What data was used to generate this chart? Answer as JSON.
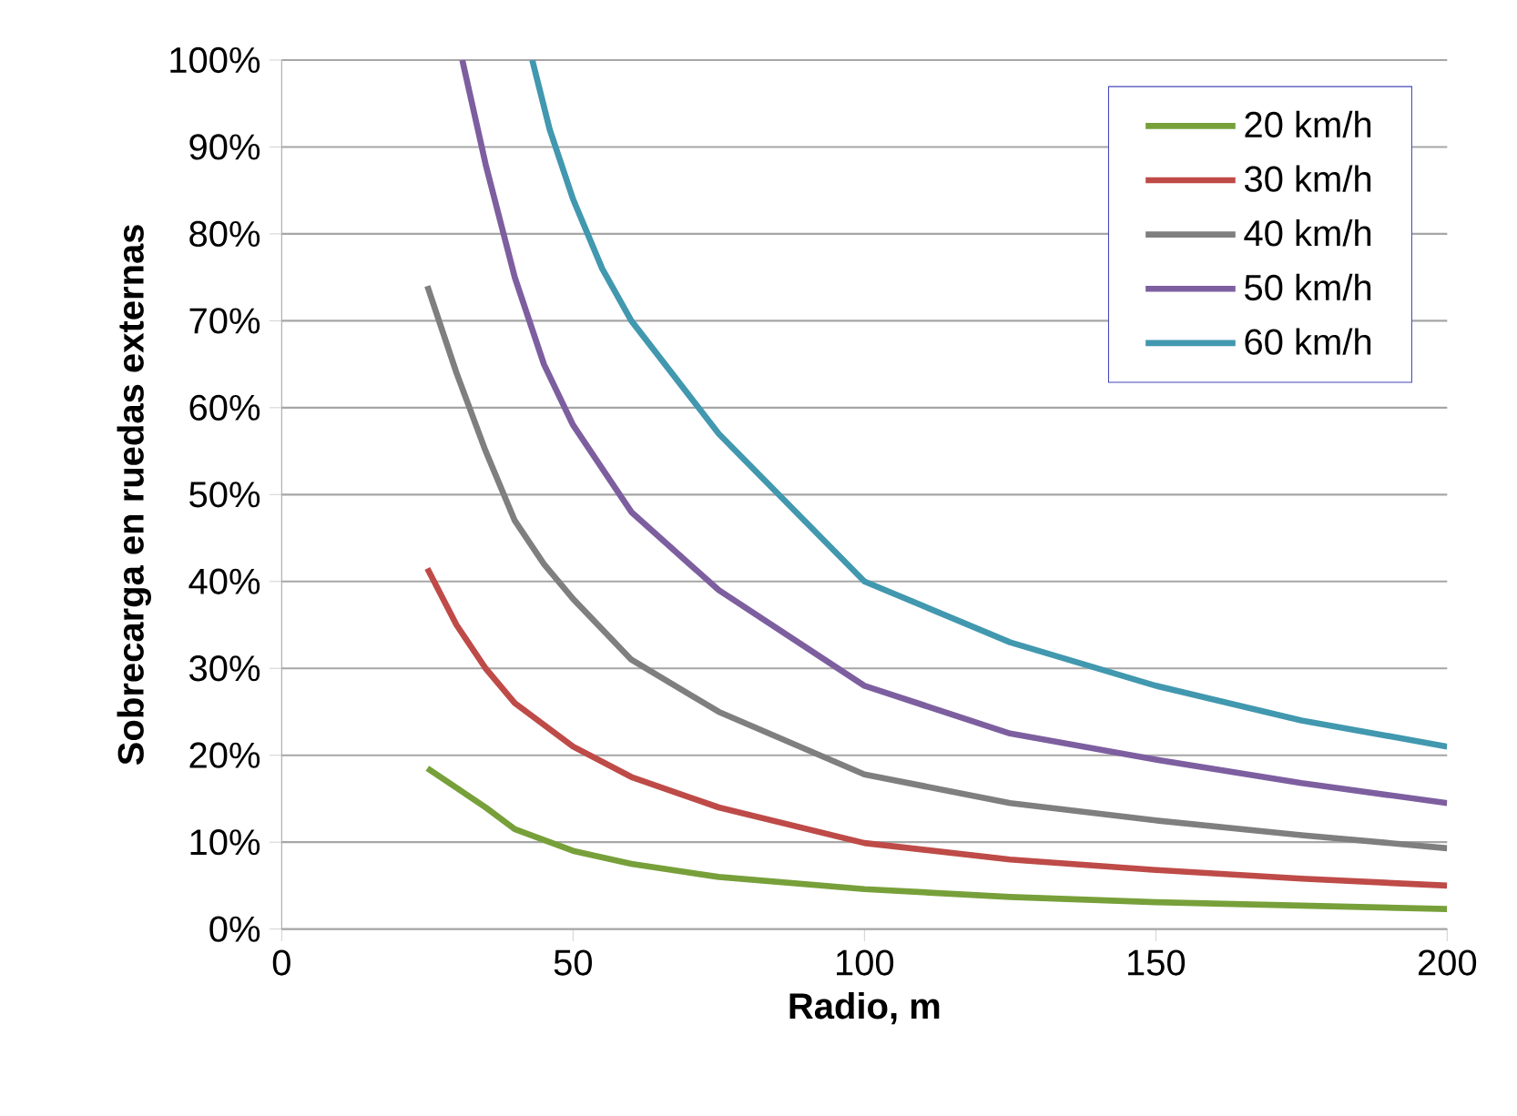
{
  "chart_data": {
    "type": "line",
    "xlabel": "Radio, m",
    "ylabel": "Sobrecarga en ruedas externas",
    "xlim": [
      0,
      200
    ],
    "xticks": [
      0,
      50,
      100,
      150,
      200
    ],
    "ylim": [
      0,
      100
    ],
    "yticks": [
      {
        "value": 0,
        "label": "0%"
      },
      {
        "value": 10,
        "label": "10%"
      },
      {
        "value": 20,
        "label": "20%"
      },
      {
        "value": 30,
        "label": "30%"
      },
      {
        "value": 40,
        "label": "40%"
      },
      {
        "value": 50,
        "label": "50%"
      },
      {
        "value": 60,
        "label": "60%"
      },
      {
        "value": 70,
        "label": "70%"
      },
      {
        "value": 80,
        "label": "80%"
      },
      {
        "value": 90,
        "label": "90%"
      },
      {
        "value": 100,
        "label": "100%"
      }
    ],
    "grid": "y",
    "legend": "top right",
    "marker": "none",
    "line_style": "solid",
    "series": [
      {
        "name": "20 km/h",
        "color": "#77a03a",
        "x": [
          25,
          35,
          40,
          50,
          60,
          75,
          100,
          125,
          150,
          175,
          200
        ],
        "values": [
          18.5,
          14,
          11.5,
          9,
          7.5,
          6,
          4.6,
          3.7,
          3.1,
          2.7,
          2.3
        ]
      },
      {
        "name": "30 km/h",
        "color": "#be4b48",
        "x": [
          25,
          30,
          35,
          40,
          50,
          60,
          75,
          100,
          125,
          150,
          175,
          200
        ],
        "values": [
          41.5,
          35,
          30,
          26,
          21,
          17.5,
          14,
          9.9,
          8,
          6.8,
          5.8,
          5
        ]
      },
      {
        "name": "40 km/h",
        "color": "#7f7f7f",
        "x": [
          25,
          30,
          35,
          40,
          45,
          50,
          60,
          75,
          100,
          125,
          150,
          175,
          200
        ],
        "values": [
          74,
          64,
          55,
          47,
          42,
          38,
          31,
          25,
          17.8,
          14.5,
          12.5,
          10.8,
          9.3
        ]
      },
      {
        "name": "50 km/h",
        "color": "#7d5fa0",
        "x": [
          31,
          35,
          40,
          45,
          50,
          60,
          75,
          100,
          125,
          150,
          175,
          200
        ],
        "values": [
          100,
          88,
          75,
          65,
          58,
          48,
          39,
          28,
          22.5,
          19.5,
          16.8,
          14.5
        ]
      },
      {
        "name": "60 km/h",
        "color": "#4198af",
        "x": [
          43,
          46,
          50,
          55,
          60,
          75,
          100,
          125,
          150,
          175,
          200
        ],
        "values": [
          100,
          92,
          84,
          76,
          70,
          57,
          40,
          33,
          28,
          24,
          21
        ]
      }
    ]
  }
}
